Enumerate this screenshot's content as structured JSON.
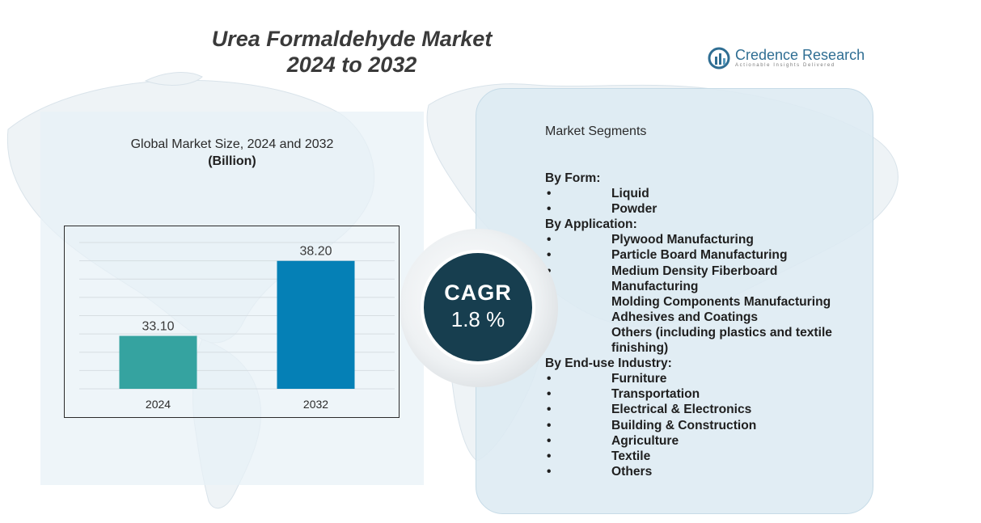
{
  "title": {
    "line1": "Urea Formaldehyde Market",
    "line2": "2024 to 2032"
  },
  "brand": {
    "name": "Credence Research",
    "tagline": "Actionable Insights Delivered"
  },
  "chart_heading": {
    "title": "Global Market Size,  2024 and 2032",
    "unit": "(Billion)"
  },
  "chart_data": {
    "type": "bar",
    "categories": [
      "2024",
      "2032"
    ],
    "values": [
      33.1,
      38.2
    ],
    "value_labels": [
      "33.10",
      "38.20"
    ],
    "bar_colors": [
      "#35a3a0",
      "#0580b6"
    ],
    "title": "Global Market Size,  2024 and 2032",
    "ylabel": "(Billion)",
    "xlabel": "",
    "ylim": [
      29.5,
      40
    ],
    "grid": true
  },
  "cagr": {
    "label": "CAGR",
    "value": "1.8 %"
  },
  "segments": {
    "heading": "Market Segments",
    "bullet": "•",
    "groups": [
      {
        "label": "By Form:",
        "items": [
          "Liquid",
          "Powder"
        ]
      },
      {
        "label": "By Application:",
        "items": [
          "Plywood Manufacturing",
          "Particle Board Manufacturing",
          "Medium Density Fiberboard Manufacturing",
          "Molding Components Manufacturing",
          "Adhesives and Coatings",
          "Others (including plastics and textile finishing)"
        ]
      },
      {
        "label": "By End-use Industry:",
        "items": [
          "Furniture",
          "Transportation",
          "Electrical & Electronics",
          "Building & Construction",
          "Agriculture",
          "Textile",
          "Others"
        ]
      }
    ]
  },
  "colors": {
    "cagr_circle": "#173e4f",
    "panel": "#ddebf3",
    "brand": "#2f6e93"
  }
}
